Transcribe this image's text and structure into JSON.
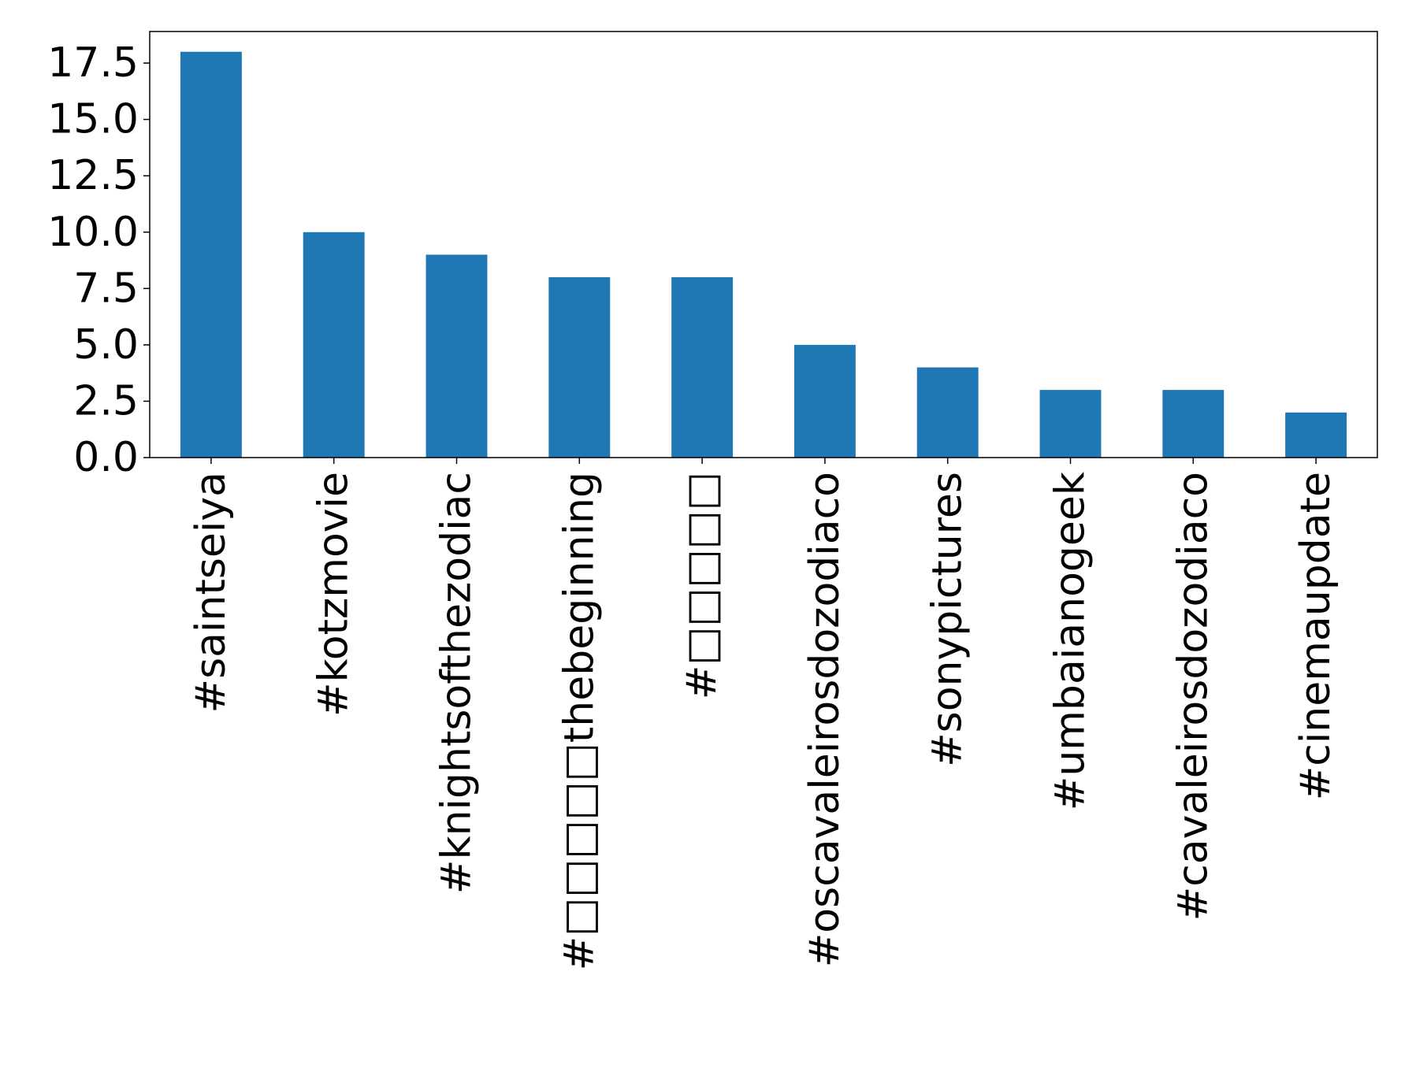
{
  "chart_data": {
    "type": "bar",
    "title": "",
    "xlabel": "",
    "ylabel": "",
    "categories": [
      "#saintseiya",
      "#kotzmovie",
      "#knightsofthezodiac",
      "#□□□□□thebeginning",
      "#□□□□□",
      "#oscavaleirosdozodiaco",
      "#sonypictures",
      "#umbaianogeek",
      "#cavaleirosdozodiaco",
      "#cinemaupdate"
    ],
    "values": [
      18,
      10,
      9,
      8,
      8,
      5,
      4,
      3,
      3,
      2
    ],
    "ylim": [
      0,
      18.9
    ],
    "yticks": [
      0.0,
      2.5,
      5.0,
      7.5,
      10.0,
      12.5,
      15.0,
      17.5
    ],
    "ytick_labels": [
      "0.0",
      "2.5",
      "5.0",
      "7.5",
      "10.0",
      "12.5",
      "15.0",
      "17.5"
    ],
    "grid": false,
    "legend": "none",
    "bar_color": "#1f77b4"
  }
}
